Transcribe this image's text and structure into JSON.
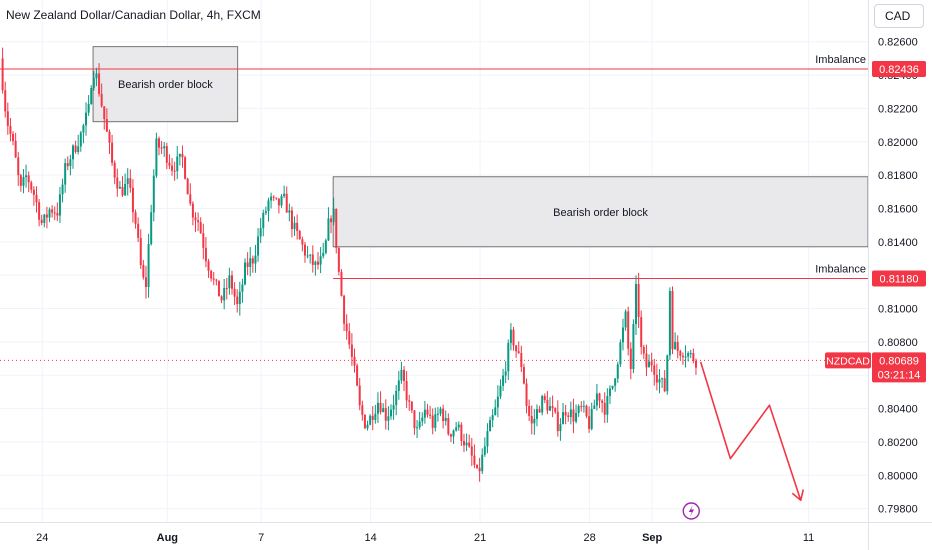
{
  "header": {
    "title": "New Zealand Dollar/Canadian Dollar, 4h, FXCM",
    "currency_button": "CAD"
  },
  "colors": {
    "up": "#089981",
    "down": "#f23645",
    "level_line": "#f23645",
    "zone_fill": "#e9e9ec",
    "zone_border": "#555555",
    "grid": "#f0f3fa",
    "axis_text": "#131722",
    "arrow": "#f23645",
    "lightning": "#9c27b0"
  },
  "chart_data": {
    "type": "candlestick",
    "title": "New Zealand Dollar/Canadian Dollar, 4h, FXCM",
    "ylim": [
      0.7972,
      0.8285
    ],
    "y_ticks": [
      "0.82600",
      "0.82400",
      "0.82200",
      "0.82000",
      "0.81800",
      "0.81600",
      "0.81400",
      "0.81200",
      "0.81000",
      "0.80800",
      "0.80600",
      "0.80400",
      "0.80200",
      "0.80000",
      "0.79800"
    ],
    "y_tick_values": [
      0.826,
      0.824,
      0.822,
      0.82,
      0.818,
      0.816,
      0.814,
      0.812,
      0.81,
      0.808,
      0.806,
      0.804,
      0.802,
      0.8,
      0.798
    ],
    "x_ticks": [
      {
        "label": "24",
        "day": 24
      },
      {
        "label": "Aug",
        "day": 32
      },
      {
        "label": "7",
        "day": 38
      },
      {
        "label": "14",
        "day": 45
      },
      {
        "label": "21",
        "day": 52
      },
      {
        "label": "28",
        "day": 59
      },
      {
        "label": "Sep",
        "day": 63
      },
      {
        "label": "11",
        "day": 73
      }
    ],
    "x_range_days": [
      21.3,
      76.8
    ],
    "close_path": [
      [
        21.3,
        0.825
      ],
      [
        21.7,
        0.8215
      ],
      [
        22.2,
        0.8195
      ],
      [
        22.6,
        0.817
      ],
      [
        23.0,
        0.818
      ],
      [
        23.5,
        0.8168
      ],
      [
        24.0,
        0.815
      ],
      [
        24.5,
        0.816
      ],
      [
        25.0,
        0.8158
      ],
      [
        25.5,
        0.8185
      ],
      [
        26.0,
        0.8195
      ],
      [
        26.5,
        0.8205
      ],
      [
        27.0,
        0.822
      ],
      [
        27.2,
        0.8245
      ],
      [
        27.5,
        0.8238
      ],
      [
        28.0,
        0.8212
      ],
      [
        28.5,
        0.8185
      ],
      [
        29.0,
        0.817
      ],
      [
        29.5,
        0.8175
      ],
      [
        30.0,
        0.815
      ],
      [
        30.3,
        0.8125
      ],
      [
        30.6,
        0.811
      ],
      [
        31.0,
        0.8165
      ],
      [
        31.3,
        0.8198
      ],
      [
        31.8,
        0.8195
      ],
      [
        32.3,
        0.8185
      ],
      [
        33.0,
        0.819
      ],
      [
        33.5,
        0.816
      ],
      [
        34.0,
        0.8152
      ],
      [
        34.5,
        0.813
      ],
      [
        35.0,
        0.8115
      ],
      [
        35.5,
        0.8105
      ],
      [
        36.0,
        0.8118
      ],
      [
        36.5,
        0.81
      ],
      [
        37.0,
        0.8125
      ],
      [
        37.5,
        0.813
      ],
      [
        38.0,
        0.815
      ],
      [
        38.5,
        0.8165
      ],
      [
        39.0,
        0.8162
      ],
      [
        39.5,
        0.8165
      ],
      [
        40.0,
        0.815
      ],
      [
        40.5,
        0.814
      ],
      [
        41.0,
        0.813
      ],
      [
        41.5,
        0.8125
      ],
      [
        42.0,
        0.813
      ],
      [
        42.3,
        0.815
      ],
      [
        42.6,
        0.816
      ],
      [
        43.0,
        0.8118
      ],
      [
        43.3,
        0.8095
      ],
      [
        43.6,
        0.808
      ],
      [
        44.0,
        0.806
      ],
      [
        44.3,
        0.804
      ],
      [
        44.7,
        0.803
      ],
      [
        45.0,
        0.8035
      ],
      [
        45.5,
        0.8045
      ],
      [
        46.0,
        0.8035
      ],
      [
        46.5,
        0.8045
      ],
      [
        47.0,
        0.806
      ],
      [
        47.5,
        0.804
      ],
      [
        48.0,
        0.8025
      ],
      [
        48.5,
        0.804
      ],
      [
        49.0,
        0.803
      ],
      [
        49.5,
        0.804
      ],
      [
        50.0,
        0.8025
      ],
      [
        50.5,
        0.803
      ],
      [
        51.0,
        0.802
      ],
      [
        51.5,
        0.801
      ],
      [
        51.8,
        0.8
      ],
      [
        52.0,
        0.8005
      ],
      [
        52.5,
        0.8025
      ],
      [
        53.0,
        0.804
      ],
      [
        53.5,
        0.806
      ],
      [
        54.0,
        0.8085
      ],
      [
        54.3,
        0.8075
      ],
      [
        54.7,
        0.8065
      ],
      [
        55.0,
        0.804
      ],
      [
        55.3,
        0.803
      ],
      [
        55.7,
        0.804
      ],
      [
        56.0,
        0.8045
      ],
      [
        56.5,
        0.804
      ],
      [
        57.0,
        0.803
      ],
      [
        57.5,
        0.804
      ],
      [
        58.0,
        0.8035
      ],
      [
        58.5,
        0.804
      ],
      [
        59.0,
        0.803
      ],
      [
        59.5,
        0.805
      ],
      [
        60.0,
        0.804
      ],
      [
        60.5,
        0.8055
      ],
      [
        61.0,
        0.808
      ],
      [
        61.3,
        0.8095
      ],
      [
        61.6,
        0.806
      ],
      [
        62.0,
        0.8115
      ],
      [
        62.3,
        0.8075
      ],
      [
        62.6,
        0.8065
      ],
      [
        63.0,
        0.8068
      ],
      [
        63.3,
        0.806
      ],
      [
        63.6,
        0.8055
      ],
      [
        63.9,
        0.805
      ],
      [
        64.1,
        0.8118
      ],
      [
        64.3,
        0.808
      ],
      [
        64.6,
        0.8075
      ],
      [
        65.0,
        0.8075
      ],
      [
        65.4,
        0.8072
      ],
      [
        65.8,
        0.8069
      ]
    ],
    "zones": [
      {
        "label": "Bearish order block",
        "x0": 27.25,
        "x1": 36.5,
        "y_top": 0.8257,
        "y_bot": 0.8212
      },
      {
        "label": "Bearish order block",
        "x0": 42.6,
        "x1": 76.8,
        "y_top": 0.8179,
        "y_bot": 0.8137
      }
    ],
    "levels": [
      {
        "label": "Imbalance",
        "value": 0.82436,
        "price_label": "0.82436",
        "x0": 21.3
      },
      {
        "label": "Imbalance",
        "value": 0.8118,
        "price_label": "0.81180",
        "x0": 42.6
      }
    ],
    "current": {
      "symbol": "NZDCAD",
      "price": 0.80689,
      "price_label": "0.80689",
      "countdown": "03:21:14"
    },
    "projection": [
      [
        66.1,
        0.8068
      ],
      [
        68.0,
        0.801
      ],
      [
        70.5,
        0.8042
      ],
      [
        72.5,
        0.7985
      ]
    ],
    "lightning_marker_day": 65.5
  }
}
